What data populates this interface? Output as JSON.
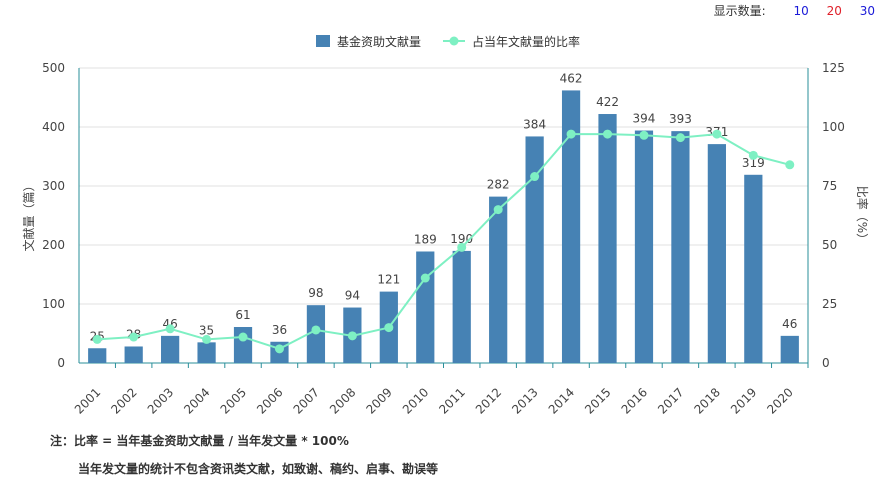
{
  "display_count": {
    "label": "显示数量:",
    "options": [
      {
        "text": "10",
        "color": "#1a1ad8"
      },
      {
        "text": "20",
        "color": "#e0202a"
      },
      {
        "text": "30",
        "color": "#1a1ad8"
      }
    ]
  },
  "chart_data": {
    "type": "bar",
    "categories": [
      "2001",
      "2002",
      "2003",
      "2004",
      "2005",
      "2006",
      "2007",
      "2008",
      "2009",
      "2010",
      "2011",
      "2012",
      "2013",
      "2014",
      "2015",
      "2016",
      "2017",
      "2018",
      "2019",
      "2020"
    ],
    "series": [
      {
        "name": "基金资助文献量",
        "type": "bar",
        "axis": "left",
        "color": "#4682b4",
        "values": [
          25,
          28,
          46,
          35,
          61,
          36,
          98,
          94,
          121,
          189,
          190,
          282,
          384,
          462,
          422,
          394,
          393,
          371,
          319,
          46
        ]
      },
      {
        "name": "占当年文献量的比率",
        "type": "line",
        "axis": "right",
        "color": "#7ef0c3",
        "values": [
          10,
          11,
          14.5,
          10,
          11,
          6,
          14,
          11.5,
          15,
          36,
          49,
          65,
          79,
          97,
          97,
          96.5,
          95.5,
          97,
          88,
          84
        ]
      }
    ],
    "ylabel_left": "文献量（篇）",
    "ylabel_right": "比率（%）",
    "ylim_left": [
      0,
      500
    ],
    "ylim_right": [
      0,
      125
    ],
    "yticks_left": [
      0,
      100,
      200,
      300,
      400,
      500
    ],
    "yticks_right": [
      0,
      25,
      50,
      75,
      100,
      125
    ],
    "grid": true,
    "legend_position": "top-center",
    "data_labels": "bars"
  },
  "notes": {
    "line1": "注：比率 = 当年基金资助文献量 / 当年发文量 * 100%",
    "line2": "当年发文量的统计不包含资讯类文献，如致谢、稿约、启事、勘误等"
  }
}
